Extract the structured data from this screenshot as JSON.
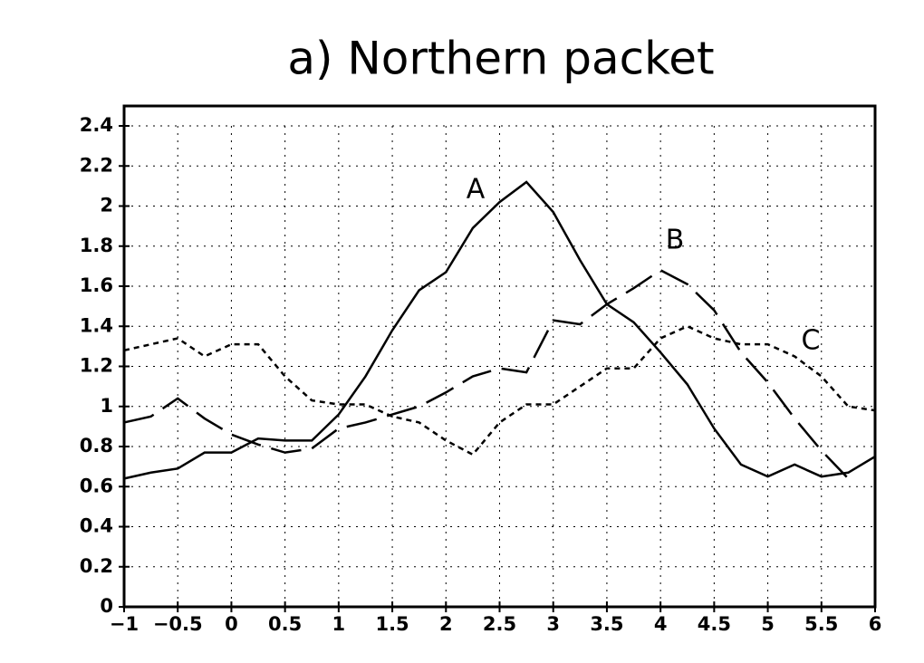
{
  "chart_data": {
    "type": "line",
    "title": "a) Northern packet",
    "x": [
      -1,
      -0.75,
      -0.5,
      -0.25,
      0,
      0.25,
      0.5,
      0.75,
      1,
      1.25,
      1.5,
      1.75,
      2,
      2.25,
      2.5,
      2.75,
      3,
      3.25,
      3.5,
      3.75,
      4,
      4.25,
      4.5,
      4.75,
      5,
      5.25,
      5.5,
      5.75,
      6
    ],
    "series": [
      {
        "name": "A",
        "color": "#000000",
        "dash": "solid",
        "values": [
          0.64,
          0.67,
          0.69,
          0.77,
          0.77,
          0.84,
          0.83,
          0.83,
          0.96,
          1.15,
          1.38,
          1.58,
          1.67,
          1.89,
          2.02,
          2.12,
          1.97,
          1.73,
          1.51,
          1.42,
          1.27,
          1.11,
          0.89,
          0.71,
          0.65,
          0.71,
          0.65,
          0.67,
          0.75
        ]
      },
      {
        "name": "B",
        "color": "#000000",
        "dash": "long",
        "values": [
          0.92,
          0.95,
          1.04,
          0.94,
          0.86,
          0.81,
          0.77,
          0.79,
          0.89,
          0.92,
          0.96,
          1.0,
          1.07,
          1.15,
          1.19,
          1.17,
          1.43,
          1.41,
          1.51,
          1.59,
          1.68,
          1.61,
          1.48,
          1.27,
          1.12,
          0.94,
          0.78,
          0.64,
          null
        ]
      },
      {
        "name": "C",
        "color": "#000000",
        "dash": "short",
        "values": [
          1.28,
          1.31,
          1.34,
          1.25,
          1.31,
          1.31,
          1.15,
          1.03,
          1.01,
          1.01,
          0.95,
          0.92,
          0.83,
          0.76,
          0.92,
          1.01,
          1.01,
          1.1,
          1.19,
          1.19,
          1.34,
          1.4,
          1.34,
          1.31,
          1.31,
          1.25,
          1.15,
          1.0,
          0.98
        ]
      }
    ],
    "xlim": [
      -1,
      6
    ],
    "xticks": [
      {
        "value": -1,
        "label": "−1"
      },
      {
        "value": -0.5,
        "label": "−0.5"
      },
      0,
      0.5,
      1,
      1.5,
      2,
      2.5,
      3,
      3.5,
      4,
      4.5,
      5,
      5.5,
      6
    ],
    "ylim": [
      0,
      2.4
    ],
    "yticks": [
      0,
      0.2,
      0.4,
      0.6,
      0.8,
      1,
      1.2,
      1.4,
      1.6,
      1.8,
      2,
      2.2,
      2.4
    ],
    "grid": true
  }
}
